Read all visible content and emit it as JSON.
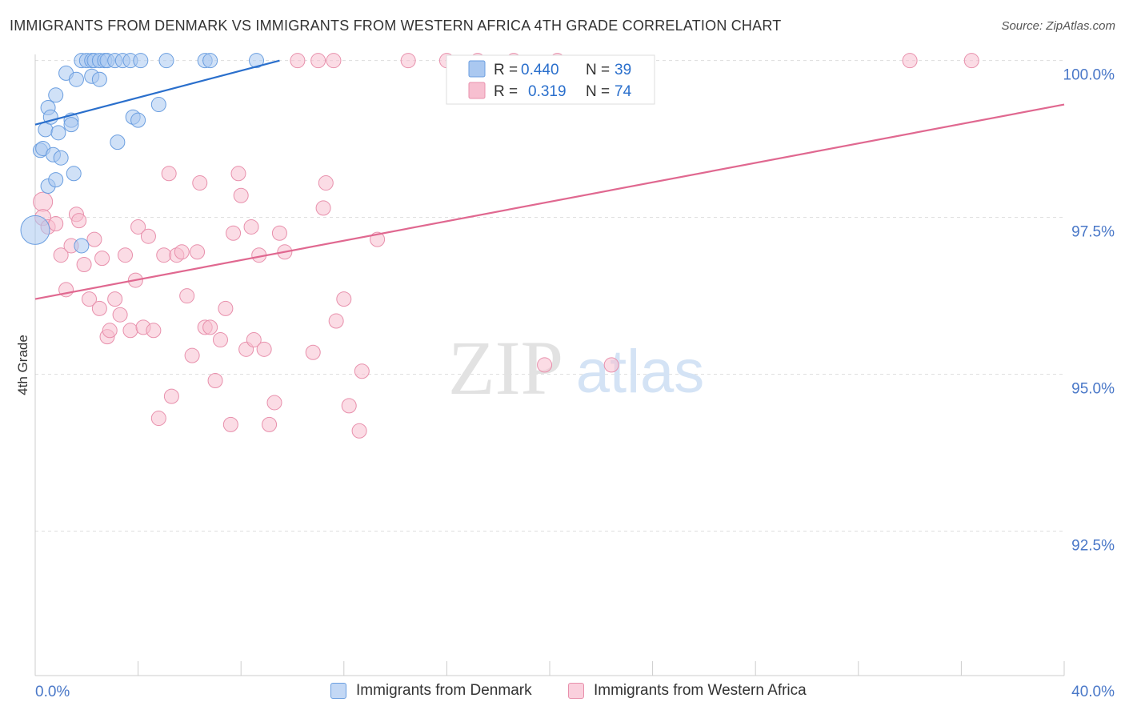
{
  "title": "IMMIGRANTS FROM DENMARK VS IMMIGRANTS FROM WESTERN AFRICA 4TH GRADE CORRELATION CHART",
  "source": "Source: ZipAtlas.com",
  "watermark": {
    "zip": "ZIP",
    "atlas": "atlas"
  },
  "colors": {
    "blue_fill": "#aac8f0",
    "blue_stroke": "#6a9ee0",
    "blue_line": "#2a6fcc",
    "pink_fill": "#f7bfd0",
    "pink_stroke": "#e890ac",
    "pink_line": "#e06890",
    "axis_text": "#4a78c8",
    "grid": "#dddddd"
  },
  "legend_stats": [
    {
      "r_label": "R = ",
      "r_value": "0.440",
      "n_label": "N = ",
      "n_value": "39"
    },
    {
      "r_label": "R = ",
      "r_value": "0.319",
      "n_label": "N = ",
      "n_value": "74"
    }
  ],
  "chart_data": {
    "type": "scatter",
    "title": "IMMIGRANTS FROM DENMARK VS IMMIGRANTS FROM WESTERN AFRICA 4TH GRADE CORRELATION CHART",
    "ylabel": "4th Grade",
    "xlabel": "",
    "xlim": [
      0,
      40
    ],
    "ylim": [
      90.2,
      100.2
    ],
    "x_tick_labels": [
      "0.0%",
      "40.0%"
    ],
    "y_ticks": [
      {
        "value": 92.5,
        "label": "92.5%"
      },
      {
        "value": 95.0,
        "label": "95.0%"
      },
      {
        "value": 97.5,
        "label": "97.5%"
      },
      {
        "value": 100.0,
        "label": "100.0%"
      }
    ],
    "legend_position": "top-center",
    "series": [
      {
        "name": "Immigrants from Denmark",
        "color": "blue",
        "trend": {
          "x": [
            0.0,
            9.5
          ],
          "y": [
            98.98,
            100.0
          ]
        },
        "points": [
          [
            0.0,
            97.3,
            18
          ],
          [
            0.2,
            98.57,
            9
          ],
          [
            0.3,
            98.6,
            9
          ],
          [
            0.4,
            98.9,
            9
          ],
          [
            0.5,
            99.25,
            9
          ],
          [
            0.6,
            99.1,
            9
          ],
          [
            0.5,
            98.0,
            9
          ],
          [
            0.7,
            98.5,
            9
          ],
          [
            0.8,
            99.45,
            9
          ],
          [
            0.8,
            98.1,
            9
          ],
          [
            0.9,
            98.85,
            9
          ],
          [
            1.0,
            98.45,
            9
          ],
          [
            1.2,
            99.8,
            9
          ],
          [
            1.4,
            99.05,
            9
          ],
          [
            1.4,
            98.98,
            9
          ],
          [
            1.5,
            98.2,
            9
          ],
          [
            1.6,
            99.7,
            9
          ],
          [
            1.8,
            97.05,
            9
          ],
          [
            1.8,
            100.0,
            9
          ],
          [
            2.0,
            100.0,
            9
          ],
          [
            2.2,
            100.0,
            9
          ],
          [
            2.2,
            99.75,
            9
          ],
          [
            2.3,
            100.0,
            9
          ],
          [
            2.5,
            100.0,
            9
          ],
          [
            2.5,
            99.7,
            9
          ],
          [
            2.7,
            100.0,
            9
          ],
          [
            2.8,
            100.0,
            9
          ],
          [
            3.1,
            100.0,
            9
          ],
          [
            3.2,
            98.7,
            9
          ],
          [
            3.4,
            100.0,
            9
          ],
          [
            3.7,
            100.0,
            9
          ],
          [
            3.8,
            99.1,
            9
          ],
          [
            4.0,
            99.05,
            9
          ],
          [
            4.1,
            100.0,
            9
          ],
          [
            4.8,
            99.3,
            9
          ],
          [
            5.1,
            100.0,
            9
          ],
          [
            6.6,
            100.0,
            9
          ],
          [
            6.8,
            100.0,
            9
          ],
          [
            8.6,
            100.0,
            9
          ]
        ]
      },
      {
        "name": "Immigrants from Western Africa",
        "color": "pink",
        "trend": {
          "x": [
            0.0,
            40.0
          ],
          "y": [
            96.2,
            99.3
          ]
        },
        "points": [
          [
            0.3,
            97.75,
            12
          ],
          [
            0.3,
            97.5,
            10
          ],
          [
            0.5,
            97.35,
            9
          ],
          [
            0.8,
            97.4,
            9
          ],
          [
            1.0,
            96.9,
            9
          ],
          [
            1.2,
            96.35,
            9
          ],
          [
            1.4,
            97.05,
            9
          ],
          [
            1.6,
            97.55,
            9
          ],
          [
            1.7,
            97.45,
            9
          ],
          [
            1.9,
            96.75,
            9
          ],
          [
            2.1,
            96.2,
            9
          ],
          [
            2.3,
            97.15,
            9
          ],
          [
            2.5,
            96.05,
            9
          ],
          [
            2.6,
            96.85,
            9
          ],
          [
            2.8,
            95.6,
            9
          ],
          [
            2.9,
            95.7,
            9
          ],
          [
            3.1,
            96.2,
            9
          ],
          [
            3.3,
            95.95,
            9
          ],
          [
            3.5,
            96.9,
            9
          ],
          [
            3.7,
            95.7,
            9
          ],
          [
            3.9,
            96.5,
            9
          ],
          [
            4.0,
            97.35,
            9
          ],
          [
            4.2,
            95.75,
            9
          ],
          [
            4.4,
            97.2,
            9
          ],
          [
            4.6,
            95.7,
            9
          ],
          [
            4.8,
            94.3,
            9
          ],
          [
            5.0,
            96.9,
            9
          ],
          [
            5.2,
            98.2,
            9
          ],
          [
            5.3,
            94.65,
            9
          ],
          [
            5.5,
            96.9,
            9
          ],
          [
            5.7,
            96.95,
            9
          ],
          [
            5.9,
            96.25,
            9
          ],
          [
            6.1,
            95.3,
            9
          ],
          [
            6.3,
            96.95,
            9
          ],
          [
            6.4,
            98.05,
            9
          ],
          [
            6.6,
            95.75,
            9
          ],
          [
            6.8,
            95.75,
            9
          ],
          [
            7.0,
            94.9,
            9
          ],
          [
            7.2,
            95.55,
            9
          ],
          [
            7.4,
            96.05,
            9
          ],
          [
            7.6,
            94.2,
            9
          ],
          [
            7.7,
            97.25,
            9
          ],
          [
            7.9,
            98.2,
            9
          ],
          [
            8.0,
            97.85,
            9
          ],
          [
            8.2,
            95.4,
            9
          ],
          [
            8.4,
            97.35,
            9
          ],
          [
            8.5,
            95.55,
            9
          ],
          [
            8.7,
            96.9,
            9
          ],
          [
            8.9,
            95.4,
            9
          ],
          [
            9.1,
            94.2,
            9
          ],
          [
            9.3,
            94.55,
            9
          ],
          [
            9.5,
            97.25,
            9
          ],
          [
            9.7,
            96.95,
            9
          ],
          [
            10.2,
            100.0,
            9
          ],
          [
            10.8,
            95.35,
            9
          ],
          [
            11.0,
            100.0,
            9
          ],
          [
            11.2,
            97.65,
            9
          ],
          [
            11.3,
            98.05,
            9
          ],
          [
            11.6,
            100.0,
            9
          ],
          [
            11.7,
            95.85,
            9
          ],
          [
            12.0,
            96.2,
            9
          ],
          [
            12.2,
            94.5,
            9
          ],
          [
            12.6,
            94.1,
            9
          ],
          [
            12.7,
            95.05,
            9
          ],
          [
            13.3,
            97.15,
            9
          ],
          [
            14.5,
            100.0,
            9
          ],
          [
            16.0,
            100.0,
            9
          ],
          [
            17.2,
            100.0,
            9
          ],
          [
            18.6,
            100.0,
            9
          ],
          [
            19.8,
            95.15,
            9
          ],
          [
            20.3,
            100.0,
            9
          ],
          [
            22.4,
            95.15,
            9
          ],
          [
            34.0,
            100.0,
            9
          ],
          [
            36.4,
            100.0,
            9
          ]
        ]
      }
    ]
  }
}
